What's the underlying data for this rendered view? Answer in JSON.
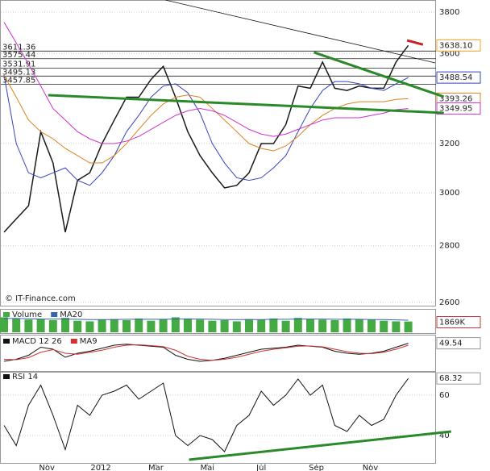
{
  "chart_data": [
    {
      "type": "line",
      "log": true,
      "ylim": [
        2600,
        3800
      ],
      "yticks": [
        2600,
        2800,
        3000,
        3200,
        3600,
        3800
      ],
      "source": "© IT-Finance.com",
      "levels": [
        3611.36,
        3575.44,
        3531.91,
        3495.13,
        3457.85
      ],
      "series": [
        {
          "color": "#1a1a1a",
          "end_label": "3638.10",
          "end_color": "#f0a020",
          "values": [
            2850,
            2900,
            2950,
            3250,
            3120,
            2850,
            3050,
            3080,
            3200,
            3300,
            3400,
            3400,
            3480,
            3540,
            3400,
            3250,
            3150,
            3080,
            3020,
            3030,
            3080,
            3200,
            3200,
            3280,
            3450,
            3440,
            3560,
            3440,
            3430,
            3450,
            3440,
            3440,
            3560,
            3638.1
          ]
        },
        {
          "color": "#3344bb",
          "end_label": "3488.54",
          "end_color": "#3344bb",
          "values": [
            3500,
            3200,
            3080,
            3060,
            3080,
            3100,
            3050,
            3030,
            3080,
            3150,
            3250,
            3320,
            3400,
            3450,
            3460,
            3420,
            3330,
            3200,
            3120,
            3060,
            3050,
            3060,
            3100,
            3150,
            3250,
            3350,
            3430,
            3470,
            3470,
            3460,
            3440,
            3430,
            3460,
            3488.54
          ]
        },
        {
          "color": "#e08020",
          "end_label": "3393.26",
          "end_color": "#e08020",
          "values": [
            3500,
            3400,
            3300,
            3250,
            3220,
            3180,
            3150,
            3120,
            3120,
            3150,
            3200,
            3260,
            3320,
            3370,
            3400,
            3410,
            3400,
            3350,
            3300,
            3250,
            3200,
            3180,
            3170,
            3190,
            3230,
            3280,
            3320,
            3350,
            3370,
            3380,
            3380,
            3380,
            3390,
            3393.26
          ]
        },
        {
          "color": "#cc33cc",
          "end_label": "3349.95",
          "end_color": "#cc33cc",
          "values": [
            3750,
            3650,
            3550,
            3450,
            3350,
            3300,
            3250,
            3220,
            3200,
            3200,
            3210,
            3230,
            3260,
            3290,
            3320,
            3340,
            3350,
            3340,
            3320,
            3290,
            3260,
            3240,
            3230,
            3240,
            3260,
            3280,
            3300,
            3310,
            3310,
            3310,
            3320,
            3330,
            3345,
            3349.95
          ]
        }
      ],
      "trendlines": [
        {
          "color": "#111111",
          "x": [
            13.2,
            35.2
          ],
          "y": [
            3860,
            3556
          ]
        },
        {
          "color": "#2a8a2a",
          "x": [
            3.6,
            35.9
          ],
          "y": [
            3409,
            3331
          ]
        },
        {
          "color": "#2a8a2a",
          "x": [
            25.3,
            35.9
          ],
          "y": [
            3605,
            3402
          ]
        },
        {
          "color": "#cc2020",
          "x": [
            32.9,
            34.2
          ],
          "y": [
            3662,
            3642
          ]
        }
      ]
    },
    {
      "type": "bar",
      "ylim": [
        0,
        3500
      ],
      "end_label": "1869K",
      "series": [
        {
          "name": "Volume",
          "color": "#44aa44",
          "values": [
            2600,
            2400,
            2200,
            2300,
            2100,
            2500,
            2000,
            1900,
            2200,
            2300,
            2100,
            2400,
            2000,
            2300,
            2600,
            2400,
            2200,
            2000,
            2100,
            1900,
            2300,
            2200,
            2400,
            2000,
            2500,
            2300,
            2200,
            2100,
            2400,
            2300,
            2200,
            2000,
            1900,
            1869
          ]
        },
        {
          "name": "MA20",
          "color": "#3366aa",
          "values": [
            2400,
            2400,
            2350,
            2300,
            2300,
            2300,
            2250,
            2200,
            2200,
            2200,
            2250,
            2250,
            2250,
            2250,
            2300,
            2300,
            2300,
            2250,
            2200,
            2200,
            2200,
            2200,
            2250,
            2250,
            2300,
            2300,
            2300,
            2250,
            2250,
            2250,
            2200,
            2200,
            2150,
            2100
          ]
        }
      ]
    },
    {
      "type": "line",
      "ylim": [
        -80,
        80
      ],
      "end_label": "49.54",
      "series": [
        {
          "name": "MACD 12 26",
          "color": "#111111",
          "values": [
            -40,
            -30,
            -10,
            30,
            20,
            -20,
            0,
            10,
            25,
            40,
            45,
            40,
            35,
            30,
            -10,
            -30,
            -40,
            -35,
            -25,
            -10,
            5,
            20,
            25,
            30,
            40,
            35,
            30,
            10,
            0,
            -5,
            0,
            10,
            30,
            49.54
          ]
        },
        {
          "name": "MA9",
          "color": "#cc3333",
          "values": [
            -30,
            -32,
            -22,
            5,
            18,
            0,
            -5,
            5,
            15,
            30,
            40,
            42,
            38,
            33,
            15,
            -15,
            -30,
            -35,
            -30,
            -20,
            -5,
            10,
            20,
            27,
            35,
            36,
            32,
            20,
            8,
            0,
            -2,
            5,
            20,
            40
          ]
        }
      ]
    },
    {
      "type": "line",
      "ylim": [
        26,
        71.2
      ],
      "yticks": [
        40,
        60
      ],
      "end_label": "68.32",
      "series": [
        {
          "name": "RSI 14",
          "color": "#111111",
          "values": [
            45,
            35,
            55,
            65,
            50,
            33,
            55,
            50,
            60,
            62,
            65,
            58,
            62,
            66,
            40,
            35,
            40,
            38,
            32,
            45,
            50,
            62,
            55,
            60,
            68,
            60,
            65,
            45,
            42,
            50,
            45,
            48,
            60,
            68.32
          ]
        }
      ],
      "trendlines": [
        {
          "color": "#2a8a2a",
          "x": [
            15.1,
            36.5
          ],
          "y": [
            28,
            42
          ]
        }
      ],
      "xticks": [
        {
          "value": 3.5,
          "label": "Nov"
        },
        {
          "value": 7.9,
          "label": "2012"
        },
        {
          "value": 12.4,
          "label": "Mar"
        },
        {
          "value": 16.6,
          "label": "Mai"
        },
        {
          "value": 21,
          "label": "Jul"
        },
        {
          "value": 25.5,
          "label": "Sep"
        },
        {
          "value": 29.9,
          "label": "Nov"
        }
      ]
    }
  ]
}
